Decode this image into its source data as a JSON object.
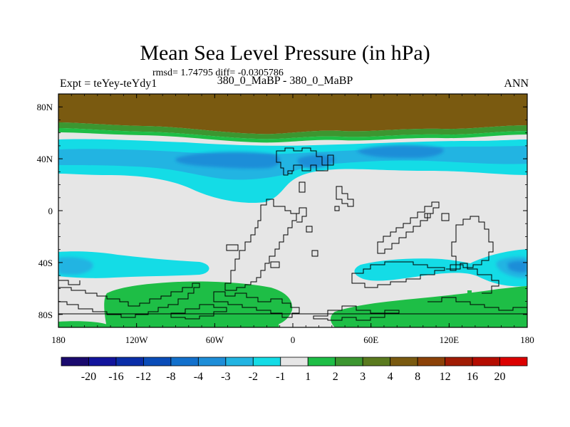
{
  "chart_data": {
    "type": "heatmap",
    "title": "Mean Sea Level Pressure (in hPa)",
    "stats_text": "rmsd= 1.74795 diff= -0.0305786",
    "left_label": "Expt = teYey-teYdy1",
    "center_label": "380_0_MaBP - 380_0_MaBP",
    "right_label": "ANN",
    "x_ticks": [
      "180",
      "120W",
      "60W",
      "0",
      "60E",
      "120E",
      "180"
    ],
    "y_ticks": [
      "80N",
      "40N",
      "0",
      "40S",
      "80S"
    ],
    "xlim": [
      -180,
      180
    ],
    "ylim": [
      -90,
      90
    ],
    "colorbar": {
      "colors": [
        "#1a0a6e",
        "#12149c",
        "#0a2ea8",
        "#0a4cb8",
        "#1270cc",
        "#1e8ed8",
        "#22b4e2",
        "#14dce6",
        "#e6e6e6",
        "#1ebe46",
        "#3c9630",
        "#5a7a1e",
        "#7a5a10",
        "#8c4208",
        "#a01c04",
        "#b40c00",
        "#dc0000"
      ],
      "labels": [
        "-20",
        "-16",
        "-12",
        "-8",
        "-4",
        "-3",
        "-2",
        "-1",
        "1",
        "2",
        "3",
        "4",
        "8",
        "12",
        "16",
        "20"
      ]
    },
    "fields": [
      {
        "level": "4 to 8",
        "color": "#7a5a10",
        "lat_range": [
          62,
          90
        ],
        "lon_range": [
          -180,
          180
        ]
      },
      {
        "level": "2 to 3",
        "color": "#3c9630",
        "lat_range": [
          56,
          62
        ],
        "lon_range": [
          -180,
          180
        ]
      },
      {
        "level": "1 to 2",
        "color": "#1ebe46",
        "lat_range": [
          52,
          60
        ],
        "lon_range": [
          -180,
          180
        ]
      },
      {
        "level": "-2 to -1",
        "color": "#14dce6",
        "lat_range": [
          20,
          52
        ],
        "lon_range": [
          -180,
          180
        ]
      },
      {
        "level": "-3 to -2",
        "color": "#22b4e2",
        "lat_range": [
          32,
          48
        ],
        "lon_range": [
          -180,
          180
        ]
      },
      {
        "level": "-4 to -3",
        "color": "#1e8ed8",
        "lat_range": [
          35,
          46
        ],
        "lon_range": [
          -130,
          100
        ]
      },
      {
        "level": "-2 to -1",
        "color": "#14dce6",
        "lat_range": [
          -58,
          -30
        ],
        "lon_range": [
          -180,
          -100
        ]
      },
      {
        "level": "-2 to -1",
        "color": "#14dce6",
        "lat_range": [
          -60,
          -32
        ],
        "lon_range": [
          45,
          180
        ]
      },
      {
        "level": "-3 to -2",
        "color": "#22b4e2",
        "lat_range": [
          -52,
          -38
        ],
        "lon_range": [
          -180,
          -165
        ]
      },
      {
        "level": "-3 to -2",
        "color": "#22b4e2",
        "lat_range": [
          -52,
          -38
        ],
        "lon_range": [
          150,
          180
        ]
      },
      {
        "level": "1 to 2",
        "color": "#1ebe46",
        "lat_range": [
          -90,
          -55
        ],
        "lon_range": [
          -145,
          -10
        ]
      },
      {
        "level": "1 to 2",
        "color": "#1ebe46",
        "lat_range": [
          -90,
          -60
        ],
        "lon_range": [
          40,
          180
        ]
      }
    ]
  }
}
